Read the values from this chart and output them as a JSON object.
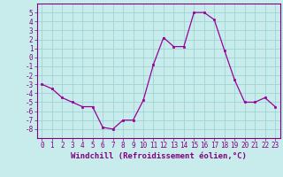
{
  "x": [
    0,
    1,
    2,
    3,
    4,
    5,
    6,
    7,
    8,
    9,
    10,
    11,
    12,
    13,
    14,
    15,
    16,
    17,
    18,
    19,
    20,
    21,
    22,
    23
  ],
  "y": [
    -3.0,
    -3.5,
    -4.5,
    -5.0,
    -5.5,
    -5.5,
    -7.8,
    -8.0,
    -7.0,
    -7.0,
    -4.8,
    -0.8,
    2.2,
    1.2,
    1.2,
    5.0,
    5.0,
    4.2,
    0.8,
    -2.5,
    -5.0,
    -5.0,
    -4.5,
    -5.5
  ],
  "line_color": "#990099",
  "marker": "s",
  "marker_size": 2.0,
  "linewidth": 0.9,
  "bg_color": "#c8ecec",
  "grid_color": "#a0d4d4",
  "xlabel": "Windchill (Refroidissement éolien,°C)",
  "xlabel_fontsize": 6.5,
  "ylim": [
    -9,
    6
  ],
  "xlim": [
    -0.5,
    23.5
  ],
  "yticks": [
    -8,
    -7,
    -6,
    -5,
    -4,
    -3,
    -2,
    -1,
    0,
    1,
    2,
    3,
    4,
    5
  ],
  "xticks": [
    0,
    1,
    2,
    3,
    4,
    5,
    6,
    7,
    8,
    9,
    10,
    11,
    12,
    13,
    14,
    15,
    16,
    17,
    18,
    19,
    20,
    21,
    22,
    23
  ],
  "tick_fontsize": 5.5,
  "spine_color": "#800080",
  "axis_label_color": "#800080"
}
